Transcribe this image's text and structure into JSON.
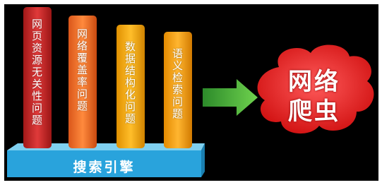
{
  "pillars": [
    {
      "label": "网页资源无关性问题"
    },
    {
      "label": "网络覆盖率问题"
    },
    {
      "label": "数据结构化问题"
    },
    {
      "label": "语义检索问题"
    }
  ],
  "platform": {
    "label": "搜索引擎"
  },
  "cloud": {
    "lines": [
      "网络",
      "爬虫"
    ]
  }
}
